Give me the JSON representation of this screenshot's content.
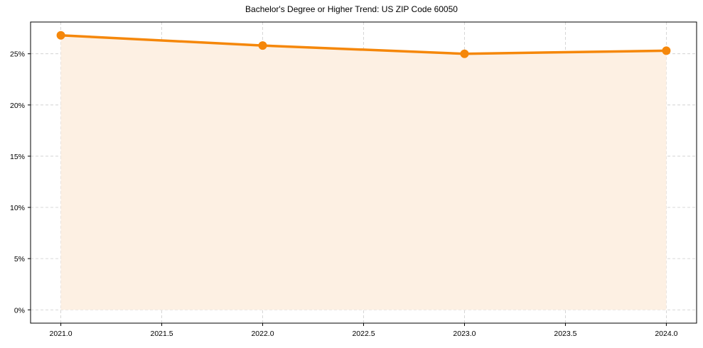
{
  "chart_data": {
    "type": "line",
    "title": "Bachelor's Degree or Higher Trend: US ZIP Code 60050",
    "xlabel": "",
    "ylabel": "",
    "x": [
      2021,
      2022,
      2023,
      2024
    ],
    "series": [
      {
        "name": "Bachelor's Degree or Higher",
        "values": [
          26.8,
          25.8,
          25.0,
          25.3
        ],
        "unit": "%"
      }
    ],
    "xlim": [
      2020.85,
      2024.15
    ],
    "ylim": [
      -1.3,
      28.1
    ],
    "x_ticks": [
      "2021.0",
      "2021.5",
      "2022.0",
      "2022.5",
      "2023.0",
      "2023.5",
      "2024.0"
    ],
    "y_ticks": [
      "0%",
      "5%",
      "10%",
      "15%",
      "20%",
      "25%"
    ],
    "grid": true,
    "fill_under_line": true,
    "legend": null
  },
  "colors": {
    "line": "#f5870a",
    "fill": "#fdf0e3",
    "grid": "#cccccc",
    "axis": "#000000"
  }
}
